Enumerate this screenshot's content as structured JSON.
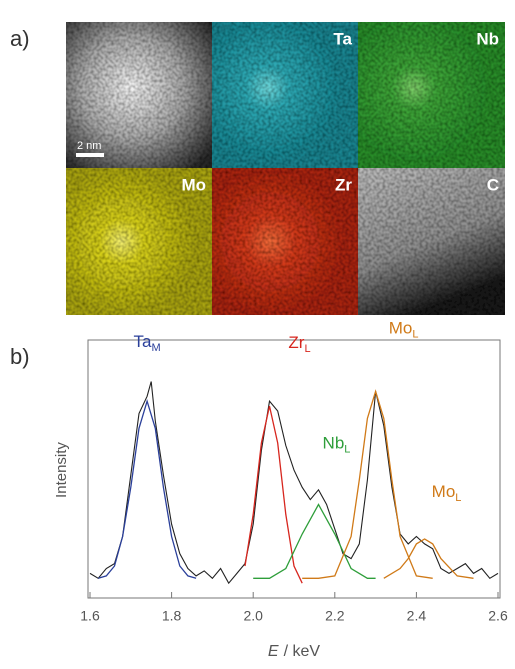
{
  "panel_a": {
    "label": "a)",
    "scale_bar": "2 nm",
    "maps": [
      "Ta",
      "Nb",
      "Mo",
      "Zr",
      "C"
    ]
  },
  "chart_data": {
    "type": "line",
    "panel_label": "b)",
    "xlabel": {
      "symbol": "E",
      "unit": "/ keV"
    },
    "ylabel": "Intensity",
    "xlim": [
      1.6,
      2.6
    ],
    "ylim": [
      0,
      100
    ],
    "xticks": [
      1.6,
      1.8,
      {
        "value": 2,
        "label": "2.0"
      },
      2.2,
      2.4,
      2.6
    ],
    "series": [
      {
        "color": "#222222",
        "x": [
          1.6,
          1.62,
          1.64,
          1.66,
          1.68,
          1.7,
          1.72,
          1.74,
          1.75,
          1.76,
          1.78,
          1.8,
          1.82,
          1.84,
          1.86,
          1.88,
          1.9,
          1.92,
          1.94,
          1.96,
          1.98,
          2,
          2.02,
          2.04,
          2.06,
          2.08,
          2.1,
          2.12,
          2.14,
          2.16,
          2.18,
          2.2,
          2.22,
          2.24,
          2.26,
          2.28,
          2.3,
          2.32,
          2.34,
          2.36,
          2.38,
          2.4,
          2.42,
          2.44,
          2.46,
          2.48,
          2.5,
          2.52,
          2.54,
          2.56,
          2.58,
          2.6
        ],
        "values": [
          10,
          8,
          12,
          14,
          25,
          50,
          75,
          82,
          88,
          72,
          50,
          30,
          18,
          12,
          9,
          11,
          8,
          12,
          6,
          10,
          14,
          30,
          60,
          80,
          76,
          62,
          52,
          45,
          40,
          44,
          38,
          28,
          18,
          16,
          22,
          48,
          84,
          70,
          45,
          26,
          22,
          25,
          22,
          20,
          12,
          10,
          12,
          14,
          10,
          12,
          8,
          10
        ]
      },
      {
        "name": "Ta",
        "sub": "M",
        "color": "#2a3f9a",
        "x": [
          1.62,
          1.64,
          1.66,
          1.68,
          1.7,
          1.72,
          1.74,
          1.76,
          1.78,
          1.8,
          1.82,
          1.84,
          1.86
        ],
        "values": [
          8,
          9,
          13,
          25,
          45,
          69,
          80,
          69,
          45,
          25,
          13,
          9,
          8
        ]
      },
      {
        "name": "Zr",
        "sub": "L",
        "color": "#d7261e",
        "x": [
          1.98,
          2,
          2.02,
          2.04,
          2.06,
          2.08,
          2.1,
          2.12
        ],
        "values": [
          13,
          34,
          63,
          78,
          63,
          34,
          13,
          6
        ]
      },
      {
        "name": "Nb",
        "sub": "L",
        "color": "#2e9e3a",
        "x": [
          2,
          2.04,
          2.08,
          2.12,
          2.16,
          2.2,
          2.24,
          2.28,
          2.3
        ],
        "values": [
          8,
          8,
          12,
          26,
          38,
          26,
          12,
          8,
          8
        ]
      },
      {
        "name": "Mo",
        "sub": "L",
        "color": "#d07a18",
        "x": [
          2.12,
          2.16,
          2.2,
          2.24,
          2.26,
          2.28,
          2.3,
          2.32,
          2.34,
          2.36,
          2.4,
          2.44
        ],
        "values": [
          8,
          8,
          9,
          25,
          48,
          73,
          84,
          73,
          48,
          25,
          9,
          8
        ]
      },
      {
        "name": "Mo",
        "sub": "L",
        "color": "#d07a18",
        "x": [
          2.32,
          2.36,
          2.38,
          2.4,
          2.42,
          2.44,
          2.46,
          2.5,
          2.54
        ],
        "values": [
          8,
          12,
          16,
          22,
          24,
          22,
          16,
          9,
          8
        ]
      }
    ]
  }
}
